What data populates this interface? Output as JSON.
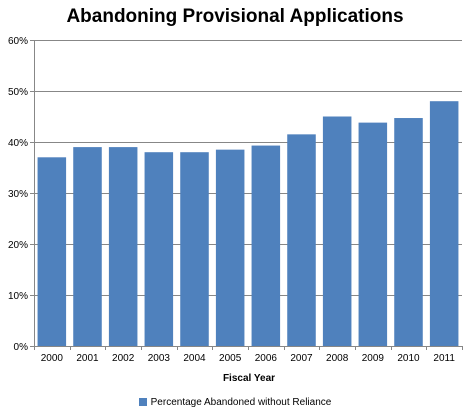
{
  "chart_data": {
    "type": "bar",
    "title": "Abandoning Provisional Applications",
    "xlabel": "Fiscal Year",
    "ylabel": "",
    "categories": [
      "2000",
      "2001",
      "2002",
      "2003",
      "2004",
      "2005",
      "2006",
      "2007",
      "2008",
      "2009",
      "2010",
      "2011"
    ],
    "series": [
      {
        "name": "Percentage Abandoned without Reliance",
        "values": [
          37,
          39,
          39,
          38,
          38,
          38.5,
          39.3,
          41.5,
          45,
          43.8,
          44.7,
          48
        ]
      }
    ],
    "ylim": [
      0,
      60
    ],
    "yticks": [
      0,
      10,
      20,
      30,
      40,
      50,
      60
    ],
    "ytick_labels": [
      "0%",
      "10%",
      "20%",
      "30%",
      "40%",
      "50%",
      "60%"
    ],
    "grid": true,
    "legend_position": "bottom",
    "bar_color": "#4f81bd",
    "grid_color": "#878787",
    "axis_color": "#878787"
  }
}
